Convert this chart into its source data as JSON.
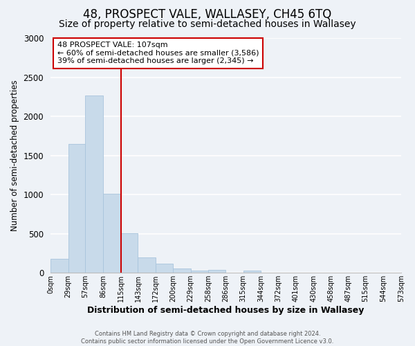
{
  "title": "48, PROSPECT VALE, WALLASEY, CH45 6TQ",
  "subtitle": "Size of property relative to semi-detached houses in Wallasey",
  "xlabel": "Distribution of semi-detached houses by size in Wallasey",
  "ylabel": "Number of semi-detached properties",
  "bin_edges": [
    0,
    29,
    57,
    86,
    115,
    143,
    172,
    200,
    229,
    258,
    286,
    315,
    344,
    372,
    401,
    430,
    458,
    487,
    515,
    544,
    573
  ],
  "bin_counts": [
    175,
    1650,
    2270,
    1010,
    505,
    200,
    115,
    55,
    25,
    40,
    0,
    30,
    0,
    0,
    0,
    0,
    0,
    0,
    0,
    0
  ],
  "bar_color": "#c8daea",
  "bar_edge_color": "#a8c4dc",
  "property_line_x": 115,
  "vline_color": "#cc0000",
  "annotation_title": "48 PROSPECT VALE: 107sqm",
  "annotation_line1": "← 60% of semi-detached houses are smaller (3,586)",
  "annotation_line2": "39% of semi-detached houses are larger (2,345) →",
  "annotation_box_color": "#ffffff",
  "annotation_box_edge": "#cc0000",
  "ylim": [
    0,
    3000
  ],
  "yticks": [
    0,
    500,
    1000,
    1500,
    2000,
    2500,
    3000
  ],
  "xtick_labels": [
    "0sqm",
    "29sqm",
    "57sqm",
    "86sqm",
    "115sqm",
    "143sqm",
    "172sqm",
    "200sqm",
    "229sqm",
    "258sqm",
    "286sqm",
    "315sqm",
    "344sqm",
    "372sqm",
    "401sqm",
    "430sqm",
    "458sqm",
    "487sqm",
    "515sqm",
    "544sqm",
    "573sqm"
  ],
  "footer1": "Contains HM Land Registry data © Crown copyright and database right 2024.",
  "footer2": "Contains public sector information licensed under the Open Government Licence v3.0.",
  "background_color": "#eef2f7",
  "grid_color": "#ffffff",
  "title_fontsize": 12,
  "subtitle_fontsize": 10
}
